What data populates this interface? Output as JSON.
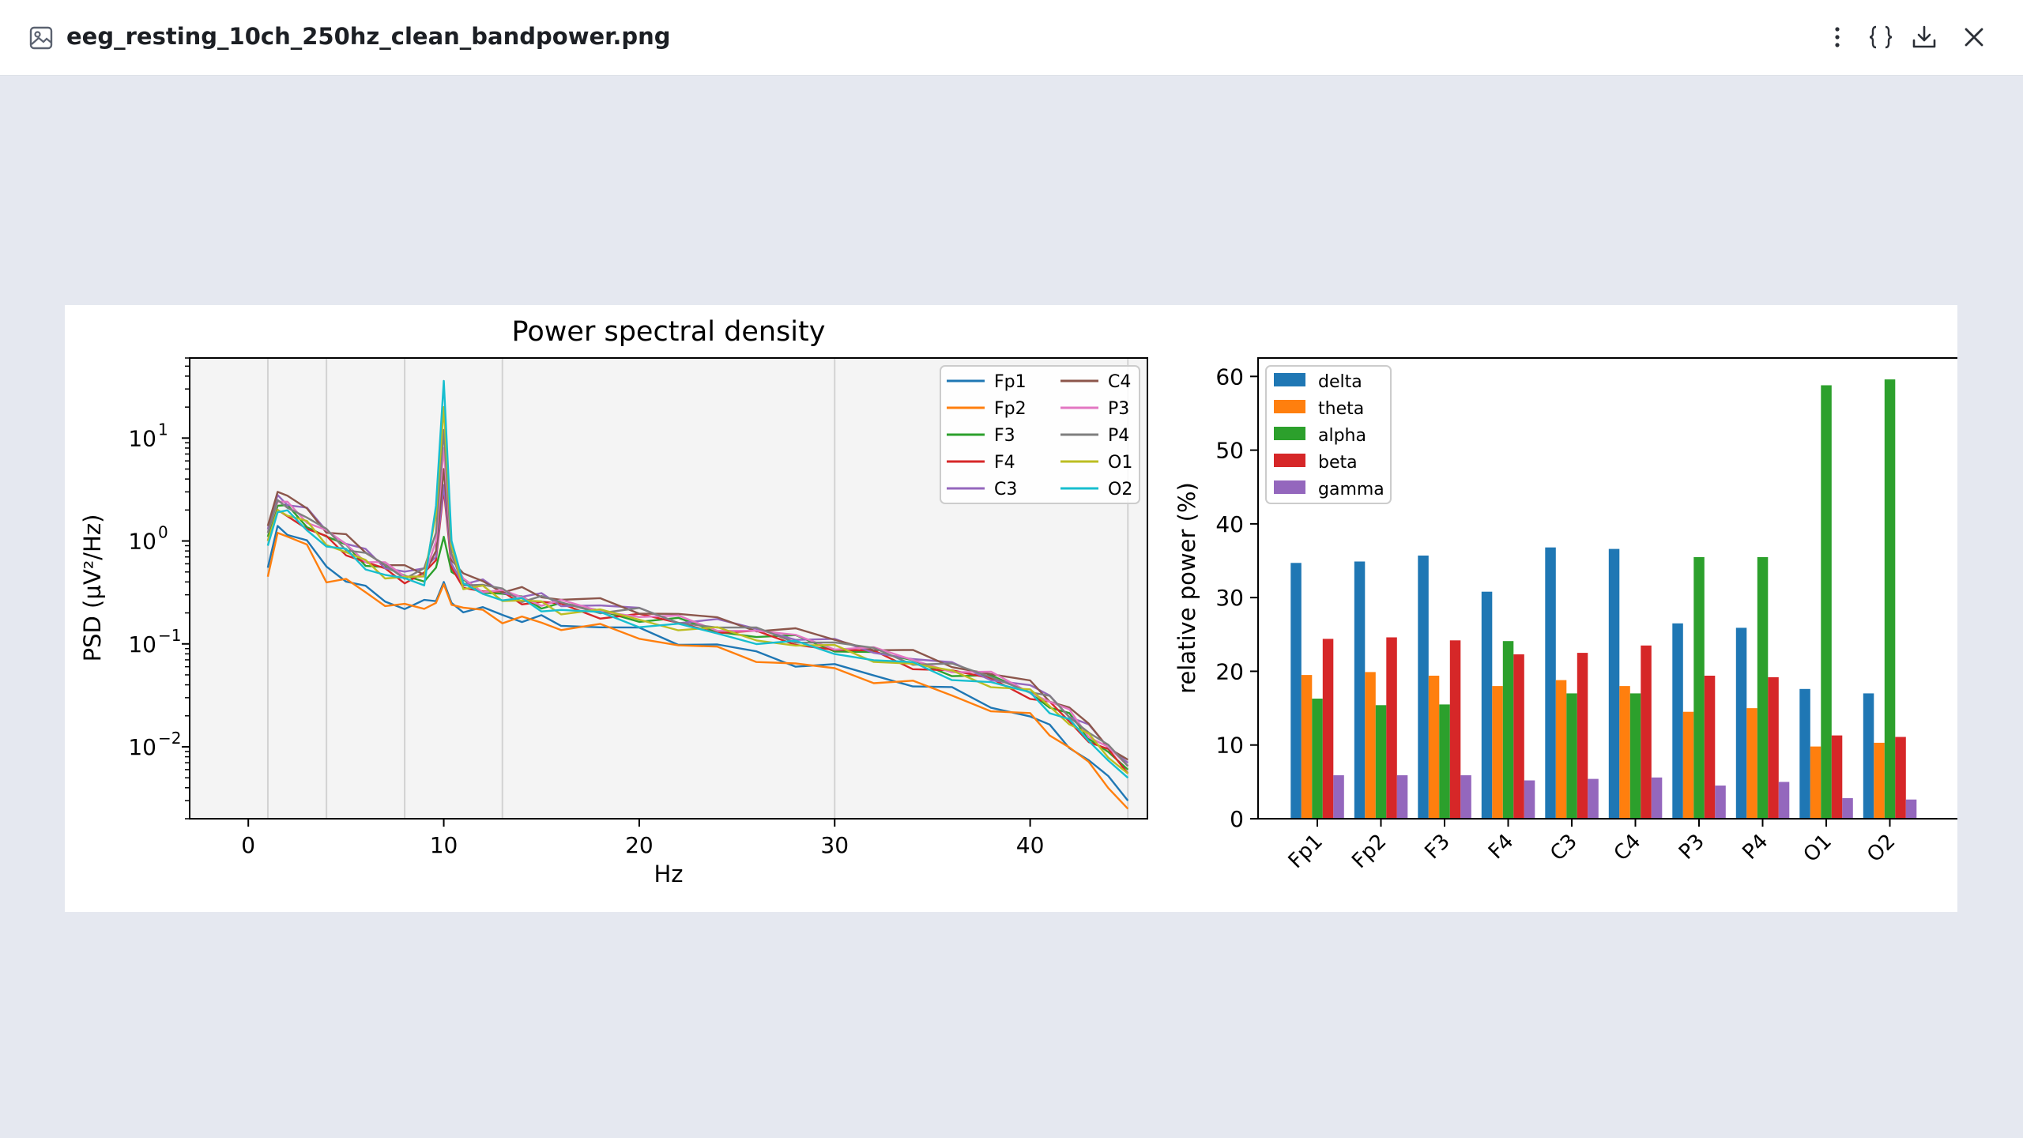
{
  "header": {
    "file_name": "eeg_resting_10ch_250hz_clean_bandpower.png",
    "icons": [
      "image-file-icon",
      "more-vertical-icon",
      "code-braces-icon",
      "download-icon",
      "close-icon"
    ]
  },
  "chart_data": [
    {
      "type": "line",
      "title": "Power spectral density",
      "xlabel": "Hz",
      "ylabel": "PSD (µV²/Hz)",
      "yscale": "log",
      "xlim": [
        -3,
        46
      ],
      "ylim": [
        0.002,
        60
      ],
      "xticks": [
        0,
        10,
        20,
        30,
        40
      ],
      "yticks": [
        {
          "value": 10,
          "base": "10",
          "exp": "1"
        },
        {
          "value": 1,
          "base": "10",
          "exp": "0"
        },
        {
          "value": 0.1,
          "base": "10",
          "exp": "−1"
        },
        {
          "value": 0.01,
          "base": "10",
          "exp": "−2"
        }
      ],
      "band_lines_hz": [
        1,
        4,
        8,
        13,
        30,
        45
      ],
      "legend_position": "upper right",
      "grid": false,
      "x": [
        1,
        1.5,
        2,
        3,
        4,
        5,
        6,
        7,
        8,
        9,
        9.6,
        10,
        10.4,
        11,
        12,
        13,
        14,
        15,
        16,
        18,
        20,
        22,
        24,
        26,
        28,
        30,
        32,
        34,
        36,
        38,
        40,
        41,
        42,
        43,
        44,
        45
      ],
      "series": [
        {
          "name": "Fp1",
          "color": "#1f77b4",
          "values": [
            0.55,
            1.4,
            1.3,
            0.95,
            0.55,
            0.45,
            0.33,
            0.27,
            0.23,
            0.24,
            0.26,
            0.4,
            0.25,
            0.23,
            0.21,
            0.19,
            0.18,
            0.17,
            0.16,
            0.15,
            0.13,
            0.11,
            0.095,
            0.08,
            0.068,
            0.058,
            0.05,
            0.042,
            0.034,
            0.026,
            0.02,
            0.015,
            0.011,
            0.007,
            0.005,
            0.003
          ]
        },
        {
          "name": "Fp2",
          "color": "#ff7f0e",
          "values": [
            0.45,
            1.2,
            1.1,
            0.85,
            0.45,
            0.4,
            0.31,
            0.26,
            0.22,
            0.23,
            0.25,
            0.38,
            0.24,
            0.22,
            0.2,
            0.18,
            0.17,
            0.16,
            0.15,
            0.14,
            0.12,
            0.1,
            0.085,
            0.075,
            0.062,
            0.055,
            0.047,
            0.04,
            0.032,
            0.024,
            0.019,
            0.014,
            0.01,
            0.0065,
            0.0045,
            0.0025
          ]
        },
        {
          "name": "F3",
          "color": "#2ca02c",
          "values": [
            1.1,
            2.2,
            2.0,
            1.5,
            1.1,
            0.85,
            0.65,
            0.52,
            0.45,
            0.45,
            0.55,
            1.1,
            0.5,
            0.38,
            0.35,
            0.3,
            0.27,
            0.25,
            0.23,
            0.21,
            0.18,
            0.16,
            0.14,
            0.12,
            0.11,
            0.095,
            0.08,
            0.066,
            0.055,
            0.045,
            0.034,
            0.026,
            0.019,
            0.013,
            0.009,
            0.006
          ]
        },
        {
          "name": "F4",
          "color": "#d62728",
          "values": [
            1.0,
            2.0,
            1.8,
            1.4,
            1.0,
            0.8,
            0.62,
            0.5,
            0.44,
            0.46,
            0.65,
            3.2,
            0.55,
            0.37,
            0.34,
            0.29,
            0.27,
            0.25,
            0.23,
            0.2,
            0.18,
            0.16,
            0.14,
            0.12,
            0.105,
            0.09,
            0.078,
            0.064,
            0.053,
            0.044,
            0.033,
            0.025,
            0.018,
            0.012,
            0.0085,
            0.0055
          ]
        },
        {
          "name": "C3",
          "color": "#9467bd",
          "values": [
            1.3,
            2.8,
            2.5,
            1.9,
            1.3,
            1.0,
            0.75,
            0.6,
            0.5,
            0.5,
            0.7,
            3.5,
            0.6,
            0.42,
            0.38,
            0.33,
            0.3,
            0.28,
            0.26,
            0.23,
            0.21,
            0.18,
            0.16,
            0.14,
            0.12,
            0.1,
            0.088,
            0.073,
            0.06,
            0.05,
            0.038,
            0.03,
            0.022,
            0.015,
            0.01,
            0.007
          ]
        },
        {
          "name": "C4",
          "color": "#8c564b",
          "values": [
            1.4,
            3.0,
            2.6,
            2.0,
            1.35,
            1.05,
            0.8,
            0.62,
            0.52,
            0.52,
            0.8,
            5.0,
            0.65,
            0.45,
            0.4,
            0.35,
            0.32,
            0.3,
            0.28,
            0.25,
            0.22,
            0.19,
            0.17,
            0.15,
            0.13,
            0.11,
            0.095,
            0.078,
            0.064,
            0.052,
            0.04,
            0.031,
            0.023,
            0.016,
            0.011,
            0.0075
          ]
        },
        {
          "name": "P3",
          "color": "#e377c2",
          "values": [
            1.2,
            2.4,
            2.2,
            1.7,
            1.2,
            0.9,
            0.7,
            0.56,
            0.47,
            0.48,
            1.0,
            8.0,
            0.7,
            0.4,
            0.36,
            0.31,
            0.28,
            0.26,
            0.24,
            0.22,
            0.19,
            0.17,
            0.15,
            0.13,
            0.115,
            0.1,
            0.085,
            0.07,
            0.058,
            0.048,
            0.036,
            0.028,
            0.021,
            0.014,
            0.0095,
            0.0065
          ]
        },
        {
          "name": "P4",
          "color": "#7f7f7f",
          "values": [
            1.2,
            2.5,
            2.3,
            1.7,
            1.2,
            0.92,
            0.72,
            0.57,
            0.48,
            0.49,
            1.2,
            12.0,
            0.75,
            0.41,
            0.37,
            0.32,
            0.29,
            0.27,
            0.25,
            0.22,
            0.2,
            0.17,
            0.15,
            0.13,
            0.115,
            0.1,
            0.086,
            0.071,
            0.059,
            0.048,
            0.037,
            0.028,
            0.021,
            0.014,
            0.0095,
            0.0065
          ]
        },
        {
          "name": "O1",
          "color": "#bcbd22",
          "values": [
            1.0,
            2.0,
            1.9,
            1.4,
            1.0,
            0.78,
            0.6,
            0.49,
            0.42,
            0.44,
            1.8,
            20.0,
            0.9,
            0.36,
            0.33,
            0.29,
            0.26,
            0.24,
            0.22,
            0.2,
            0.17,
            0.15,
            0.13,
            0.115,
            0.1,
            0.088,
            0.075,
            0.062,
            0.052,
            0.043,
            0.033,
            0.025,
            0.018,
            0.012,
            0.0085,
            0.0055
          ]
        },
        {
          "name": "O2",
          "color": "#17becf",
          "values": [
            0.9,
            1.9,
            1.8,
            1.3,
            0.95,
            0.75,
            0.58,
            0.47,
            0.4,
            0.42,
            2.2,
            36.0,
            1.0,
            0.35,
            0.32,
            0.28,
            0.25,
            0.23,
            0.21,
            0.19,
            0.165,
            0.145,
            0.125,
            0.11,
            0.096,
            0.085,
            0.072,
            0.06,
            0.05,
            0.041,
            0.032,
            0.024,
            0.017,
            0.0115,
            0.008,
            0.005
          ]
        }
      ]
    },
    {
      "type": "bar",
      "title": "",
      "xlabel": "",
      "ylabel": "relative power (%)",
      "ylim": [
        0,
        62.5
      ],
      "yticks": [
        0,
        10,
        20,
        30,
        40,
        50,
        60
      ],
      "legend_position": "upper left",
      "grid": false,
      "categories": [
        "Fp1",
        "Fp2",
        "F3",
        "F4",
        "C3",
        "C4",
        "P3",
        "P4",
        "O1",
        "O2"
      ],
      "series": [
        {
          "name": "delta",
          "color": "#1f77b4",
          "values": [
            34.7,
            34.9,
            35.7,
            30.8,
            36.8,
            36.6,
            26.5,
            25.9,
            17.6,
            17.0
          ]
        },
        {
          "name": "theta",
          "color": "#ff7f0e",
          "values": [
            19.5,
            19.9,
            19.4,
            18.0,
            18.8,
            18.0,
            14.5,
            15.0,
            9.8,
            10.3
          ]
        },
        {
          "name": "alpha",
          "color": "#2ca02c",
          "values": [
            16.3,
            15.4,
            15.5,
            24.1,
            17.0,
            17.0,
            35.5,
            35.5,
            58.8,
            59.6
          ]
        },
        {
          "name": "beta",
          "color": "#d62728",
          "values": [
            24.4,
            24.6,
            24.2,
            22.3,
            22.5,
            23.5,
            19.4,
            19.2,
            11.3,
            11.1
          ]
        },
        {
          "name": "gamma",
          "color": "#9467bd",
          "values": [
            5.9,
            5.9,
            5.9,
            5.2,
            5.4,
            5.6,
            4.5,
            5.0,
            2.8,
            2.6
          ]
        }
      ]
    }
  ]
}
